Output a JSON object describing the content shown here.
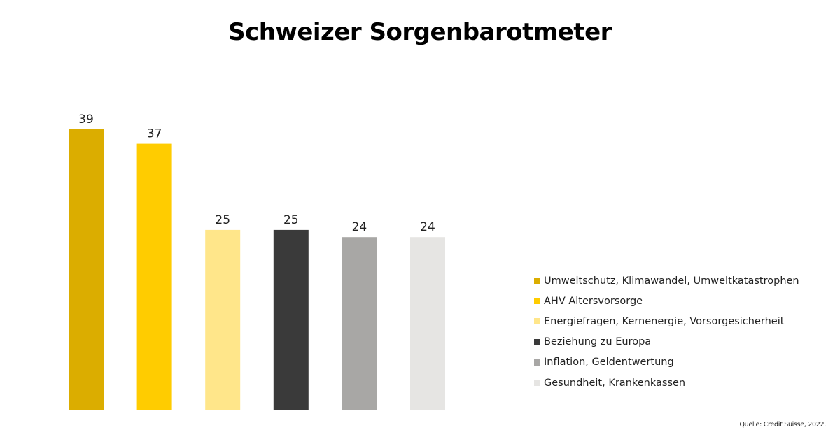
{
  "chart_data": {
    "type": "bar",
    "title": "Schweizer Sorgenbarotmeter",
    "categories": [
      "Umweltschutz, Klimawandel, Umweltkatastrophen",
      "AHV Altersvorsorge",
      "Energiefragen, Kernenergie, Vorsorgesicherheit",
      "Beziehung zu Europa",
      "Inflation, Geldentwertung",
      "Gesundheit, Krankenkassen"
    ],
    "values": [
      39,
      37,
      25,
      25,
      24,
      24
    ],
    "colors": [
      "#DBAD00",
      "#FFCC00",
      "#FFE68A",
      "#3A3A3A",
      "#A8A7A5",
      "#E6E5E3"
    ],
    "ylim": [
      0,
      39
    ],
    "grid": false,
    "legend_position": "right",
    "data_labels": true,
    "xlabel": "",
    "ylabel": ""
  },
  "source": "Quelle: Credit Suisse, 2022."
}
